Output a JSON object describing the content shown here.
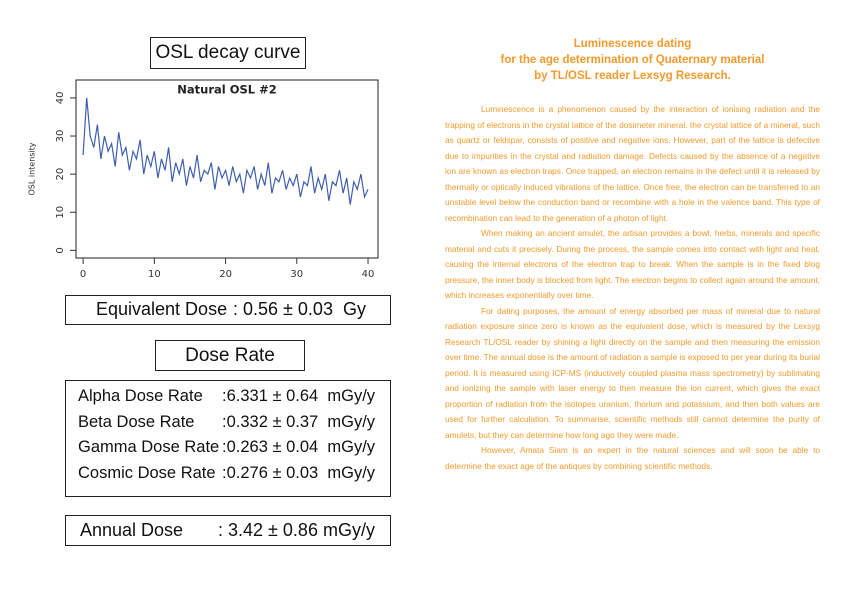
{
  "osl_heading": "OSL decay curve",
  "chart_data": {
    "type": "line",
    "title": "Natural OSL #2",
    "y_label": "OSL intensity",
    "color": "#3f5fae",
    "x": [
      0,
      0.5,
      1,
      1.5,
      2,
      2.5,
      3,
      3.5,
      4,
      4.5,
      5,
      5.5,
      6,
      6.5,
      7,
      7.5,
      8,
      8.5,
      9,
      9.5,
      10,
      10.5,
      11,
      11.5,
      12,
      12.5,
      13,
      13.5,
      14,
      14.5,
      15,
      15.5,
      16,
      16.5,
      17,
      17.5,
      18,
      18.5,
      19,
      19.5,
      20,
      20.5,
      21,
      21.5,
      22,
      22.5,
      23,
      23.5,
      24,
      24.5,
      25,
      25.5,
      26,
      26.5,
      27,
      27.5,
      28,
      28.5,
      29,
      29.5,
      30,
      30.5,
      31,
      31.5,
      32,
      32.5,
      33,
      33.5,
      34,
      34.5,
      35,
      35.5,
      36,
      36.5,
      37,
      37.5,
      38,
      38.5,
      39,
      39.5,
      40
    ],
    "values": [
      25,
      40,
      30,
      27,
      33,
      24,
      30,
      26,
      28,
      22,
      31,
      25,
      27,
      21,
      26,
      24,
      29,
      20,
      25,
      22,
      26,
      19,
      24,
      21,
      27,
      18,
      23,
      20,
      24,
      17,
      22,
      19,
      25,
      18,
      21,
      20,
      23,
      16,
      22,
      19,
      21,
      17,
      22,
      18,
      20,
      15,
      21,
      19,
      22,
      16,
      20,
      17,
      23,
      15,
      19,
      18,
      21,
      16,
      19,
      17,
      20,
      14,
      18,
      17,
      22,
      15,
      19,
      16,
      20,
      13,
      18,
      17,
      21,
      15,
      19,
      12,
      18,
      16,
      20,
      14,
      16
    ],
    "xlim": [
      -1,
      41.4
    ],
    "ylim": [
      -2,
      44.7
    ],
    "xticks": [
      0,
      10,
      20,
      30,
      40
    ],
    "yticks": [
      0,
      10,
      20,
      30,
      40
    ]
  },
  "equivalent_dose": {
    "label": "Equivalent Dose",
    "value": ": 0.56 ± 0.03  Gy"
  },
  "dose_rate_heading": "Dose Rate",
  "dose_rates": [
    {
      "label": "Alpha Dose Rate",
      "value": ":6.331 ± 0.64  mGy/y"
    },
    {
      "label": "Beta Dose Rate",
      "value": ":0.332 ± 0.37  mGy/y"
    },
    {
      "label": "Gamma Dose Rate",
      "value": ":0.263 ± 0.04  mGy/y"
    },
    {
      "label": "Cosmic Dose Rate",
      "value": ":0.276 ± 0.03  mGy/y"
    }
  ],
  "annual_dose": {
    "label": "Annual Dose",
    "value": ": 3.42 ± 0.86 mGy/y"
  },
  "article": {
    "title": [
      "Luminescence dating",
      "for the age determination of Quaternary material",
      "by TL/OSL reader Lexsyg Research."
    ],
    "paragraphs": [
      "Luminescence is a phenomenon caused by the interaction of ionising radiation and the trapping of electrons in the crystal lattice of the dosimeter mineral. the crystal lattice of a mineral, such as quartz or feldspar, consists of positive and negative ions. However, part of the lattice is defective due to impurities in the crystal and radiation damage. Defects caused by the absence of a negative ion are known as electron traps. Once trapped, an electron remains in the defect until it is released by thermally or optically induced vibrations of the lattice. Once free, the electron can be transferred to an unstable level below the conduction band or recombine with a hole in the valence band. This type of recombination can lead to the generation of a photon of light.",
      "When making an ancient amulet, the artisan provides a bowl, herbs, minerals and specific material and cuts it precisely. During the process, the sample comes into contact with light and heat, causing the internal electrons of the electron trap to break. When the sample is in the fixed blog pressure, the inner body is blocked from light. The electron begins to collect again around the amount, which increases exponentially over time.",
      "For dating purposes, the amount of energy absorbed per mass of mineral due to natural radiation exposure since zero is known as the equivalent dose, which is measured by the Lexsyg Research TL/OSL reader by shining a light directly on the sample and then measuring the emission over time. The annual dose is the amount of radiation a sample is exposed to per year during its burial period. It is measured using ICP-MS (inductively coupled plasma mass spectrometry) by sublimating and ionizing the sample with laser energy to then measure the ion current, which gives the exact proportion of radiation from the isotopes uranium, thorium and potassium, and then both values are used for further calculation. To summarise, scientific methods still cannot determine the purity of amulets, but they can determine how long ago they were made.",
      "However, Amata Siam is an expert in the natural sciences and will soon be able to determine the exact age of the antiques by combining scientific methods."
    ]
  }
}
